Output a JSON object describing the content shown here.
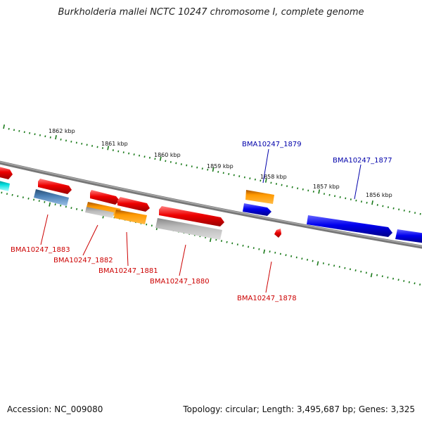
{
  "header": {
    "title": "Burkholderia mallei NCTC 10247 chromosome I, complete genome"
  },
  "footer": {
    "accession": "Accession: NC_009080",
    "summary": "Topology: circular; Length: 3,495,687 bp; Genes: 3,325"
  },
  "map": {
    "scale_labels": [
      "1862 kbp",
      "1861 kbp",
      "1860 kbp",
      "1859 kbp",
      "1858 kbp",
      "1857 kbp",
      "1856 kbp"
    ],
    "gene_labels": [
      {
        "name": "BMA10247_1883",
        "color": "#cc0000"
      },
      {
        "name": "BMA10247_1882",
        "color": "#cc0000"
      },
      {
        "name": "BMA10247_1881",
        "color": "#cc0000"
      },
      {
        "name": "BMA10247_1880",
        "color": "#cc0000"
      },
      {
        "name": "BMA10247_1879",
        "color": "#0000aa"
      },
      {
        "name": "BMA10247_1878",
        "color": "#cc0000"
      },
      {
        "name": "BMA10247_1877",
        "color": "#0000aa"
      }
    ],
    "colors": {
      "backbone": "#888888",
      "tick": "#1a7a1a",
      "red_feature": "#ee0000",
      "blue_feature": "#0000ee",
      "orange_feature": "#ff9900",
      "gray_feature": "#bbbbbb",
      "steelblue_feature": "#4a7fb5",
      "cyan_feature": "#00dddd"
    }
  }
}
